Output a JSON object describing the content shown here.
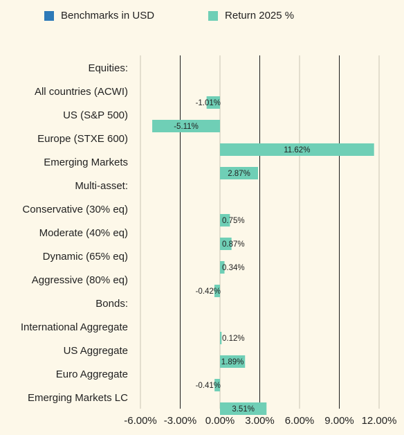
{
  "legend": [
    {
      "label": "Benchmarks in USD",
      "color": "#2e7ab8"
    },
    {
      "label": "Return 2025 %",
      "color": "#6fcfb6"
    }
  ],
  "chart_data": {
    "type": "bar",
    "orientation": "horizontal",
    "categories": [
      "Equities:",
      "All countries (ACWI)",
      "US (S&P 500)",
      "Europe (STXE 600)",
      "Emerging Markets",
      "Multi-asset:",
      "Conservative (30% eq)",
      "Moderate (40% eq)",
      "Dynamic (65% eq)",
      "Aggressive (80% eq)",
      "Bonds:",
      "International Aggregate",
      "US Aggregate",
      "Euro Aggregate",
      "Emerging Markets LC"
    ],
    "series": [
      {
        "name": "Benchmarks in USD",
        "color": "#2e7ab8",
        "values": [
          null,
          null,
          null,
          null,
          null,
          null,
          null,
          null,
          null,
          null,
          null,
          null,
          null,
          null,
          null
        ]
      },
      {
        "name": "Return 2025 %",
        "color": "#6fcfb6",
        "values": [
          null,
          -1.01,
          -5.11,
          11.62,
          2.87,
          null,
          0.75,
          0.87,
          0.34,
          -0.42,
          null,
          0.12,
          1.89,
          -0.41,
          3.51
        ],
        "labels": [
          "",
          "-1.01%",
          "-5.11%",
          "11.62%",
          "2.87%",
          "",
          "0.75%",
          "0.87%",
          "0.34%",
          "-0.42%",
          "",
          "0.12%",
          "1.89%",
          "-0.41%",
          "3.51%"
        ]
      }
    ],
    "xlim": [
      -6,
      12
    ],
    "xticks": [
      -6,
      -3,
      0,
      3,
      6,
      9,
      12
    ],
    "xtick_labels": [
      "-6.00%",
      "-3.00%",
      "0.00%",
      "3.00%",
      "6.00%",
      "9.00%",
      "12.00%"
    ],
    "grid": "vertical",
    "legend_position": "top"
  }
}
